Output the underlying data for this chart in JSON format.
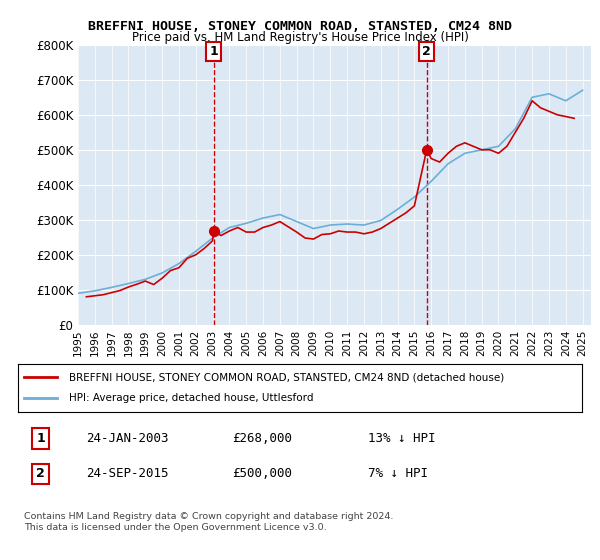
{
  "title": "BREFFNI HOUSE, STONEY COMMON ROAD, STANSTED, CM24 8ND",
  "subtitle": "Price paid vs. HM Land Registry's House Price Index (HPI)",
  "legend_line1": "BREFFNI HOUSE, STONEY COMMON ROAD, STANSTED, CM24 8ND (detached house)",
  "legend_line2": "HPI: Average price, detached house, Uttlesford",
  "footer": "Contains HM Land Registry data © Crown copyright and database right 2024.\nThis data is licensed under the Open Government Licence v3.0.",
  "transaction1_label": "1",
  "transaction1_date": "24-JAN-2003",
  "transaction1_price": "£268,000",
  "transaction1_hpi": "13% ↓ HPI",
  "transaction1_year": 2003.07,
  "transaction1_value": 268000,
  "transaction2_label": "2",
  "transaction2_date": "24-SEP-2015",
  "transaction2_price": "£500,000",
  "transaction2_hpi": "7% ↓ HPI",
  "transaction2_year": 2015.73,
  "transaction2_value": 500000,
  "hpi_color": "#6baed6",
  "price_color": "#cc0000",
  "marker_color": "#cc0000",
  "background_plot": "#dce9f5",
  "ylim": [
    0,
    800000
  ],
  "yticks": [
    0,
    100000,
    200000,
    300000,
    400000,
    500000,
    600000,
    700000,
    800000
  ],
  "ytick_labels": [
    "£0",
    "£100K",
    "£200K",
    "£300K",
    "£400K",
    "£500K",
    "£600K",
    "£700K",
    "£800K"
  ],
  "years": [
    1995,
    1996,
    1997,
    1998,
    1999,
    2000,
    2001,
    2002,
    2003,
    2004,
    2005,
    2006,
    2007,
    2008,
    2009,
    2010,
    2011,
    2012,
    2013,
    2014,
    2015,
    2016,
    2017,
    2018,
    2019,
    2020,
    2021,
    2022,
    2023,
    2024,
    2025
  ],
  "hpi_values": [
    90000,
    97000,
    107000,
    118000,
    130000,
    148000,
    175000,
    210000,
    248000,
    278000,
    290000,
    305000,
    315000,
    295000,
    275000,
    285000,
    288000,
    285000,
    298000,
    330000,
    365000,
    410000,
    460000,
    490000,
    500000,
    510000,
    560000,
    650000,
    660000,
    640000,
    670000
  ],
  "price_paid_years": [
    1995.5,
    1996.0,
    1996.5,
    1997.0,
    1997.5,
    1998.0,
    1998.5,
    1999.0,
    1999.5,
    2000.0,
    2000.5,
    2001.0,
    2001.5,
    2002.0,
    2002.5,
    2003.0,
    2003.07,
    2003.5,
    2004.0,
    2004.5,
    2005.0,
    2005.5,
    2006.0,
    2006.5,
    2007.0,
    2007.5,
    2008.0,
    2008.5,
    2009.0,
    2009.5,
    2010.0,
    2010.5,
    2011.0,
    2011.5,
    2012.0,
    2012.5,
    2013.0,
    2013.5,
    2014.0,
    2014.5,
    2015.0,
    2015.73,
    2016.0,
    2016.5,
    2017.0,
    2017.5,
    2018.0,
    2018.5,
    2019.0,
    2019.5,
    2020.0,
    2020.5,
    2021.0,
    2021.5,
    2022.0,
    2022.5,
    2023.0,
    2023.5,
    2024.0,
    2024.5
  ],
  "price_paid_values": [
    80000,
    83000,
    86000,
    92000,
    98000,
    108000,
    116000,
    125000,
    115000,
    133000,
    155000,
    163000,
    190000,
    200000,
    218000,
    240000,
    268000,
    255000,
    268000,
    278000,
    265000,
    265000,
    278000,
    285000,
    295000,
    280000,
    265000,
    248000,
    245000,
    258000,
    260000,
    268000,
    265000,
    265000,
    260000,
    265000,
    275000,
    290000,
    305000,
    320000,
    340000,
    500000,
    475000,
    465000,
    490000,
    510000,
    520000,
    510000,
    500000,
    500000,
    490000,
    510000,
    550000,
    590000,
    640000,
    620000,
    610000,
    600000,
    595000,
    590000
  ]
}
